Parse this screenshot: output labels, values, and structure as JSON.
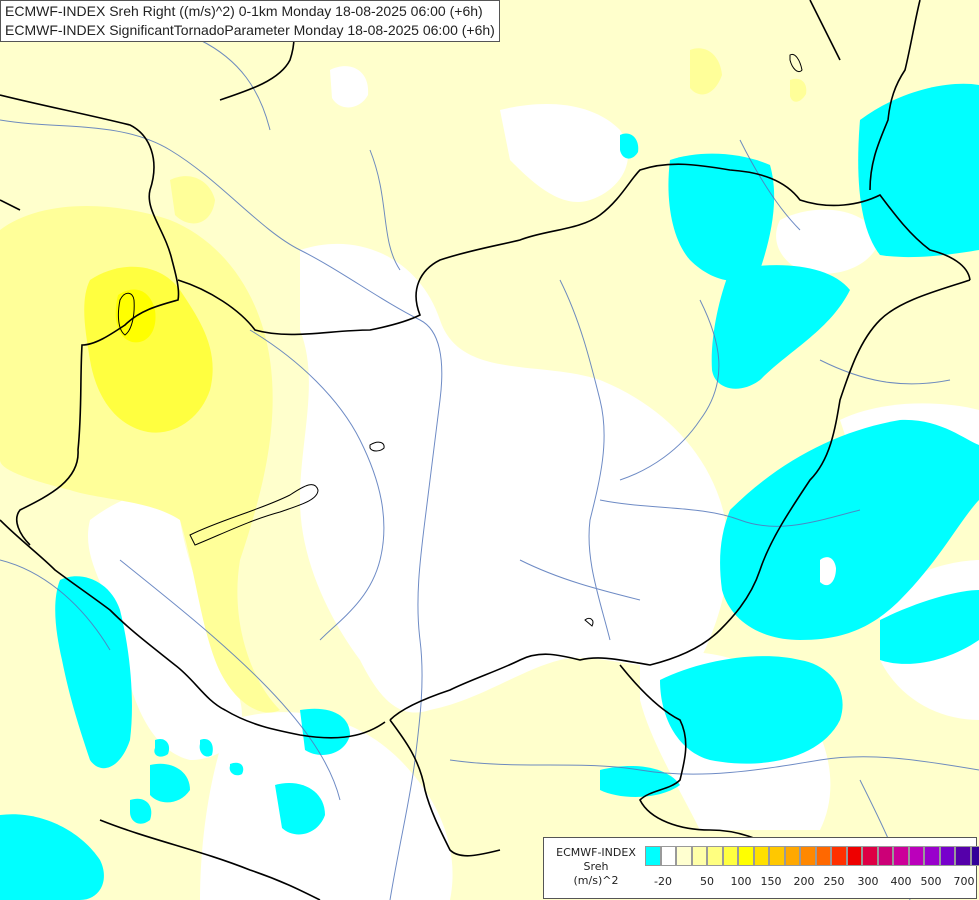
{
  "title": {
    "line1": "ECMWF-INDEX Sreh Right ((m/s)^2) 0-1km Monday 18-08-2025 06:00 (+6h)",
    "line2": "ECMWF-INDEX SignificantTornadoParameter Monday 18-08-2025 06:00 (+6h)"
  },
  "legend": {
    "line1": "ECMWF-INDEX",
    "line2": "Sreh",
    "line3": "(m/s)^2",
    "colors": [
      "#00ffff",
      "#ffffff",
      "#ffffd0",
      "#ffffa8",
      "#ffff80",
      "#ffff40",
      "#ffff00",
      "#ffe000",
      "#ffc800",
      "#ffa800",
      "#ff8800",
      "#ff6800",
      "#ff3000",
      "#ee0000",
      "#dd0044",
      "#cc0077",
      "#cc0099",
      "#bb00bb",
      "#9900cc",
      "#7700cc",
      "#5500aa",
      "#330099",
      "#000077"
    ],
    "ticks": [
      "-20",
      "50",
      "100",
      "150",
      "200",
      "250",
      "300",
      "400",
      "500",
      "700"
    ]
  },
  "colors": {
    "shade_neg": "#00ffff",
    "shade_zero": "#ffffff",
    "shade_low": "#ffffcc",
    "shade_mid": "#ffff99",
    "shade_high": "#ffff00",
    "borders": "#000000",
    "rivers": "#5577bb"
  }
}
